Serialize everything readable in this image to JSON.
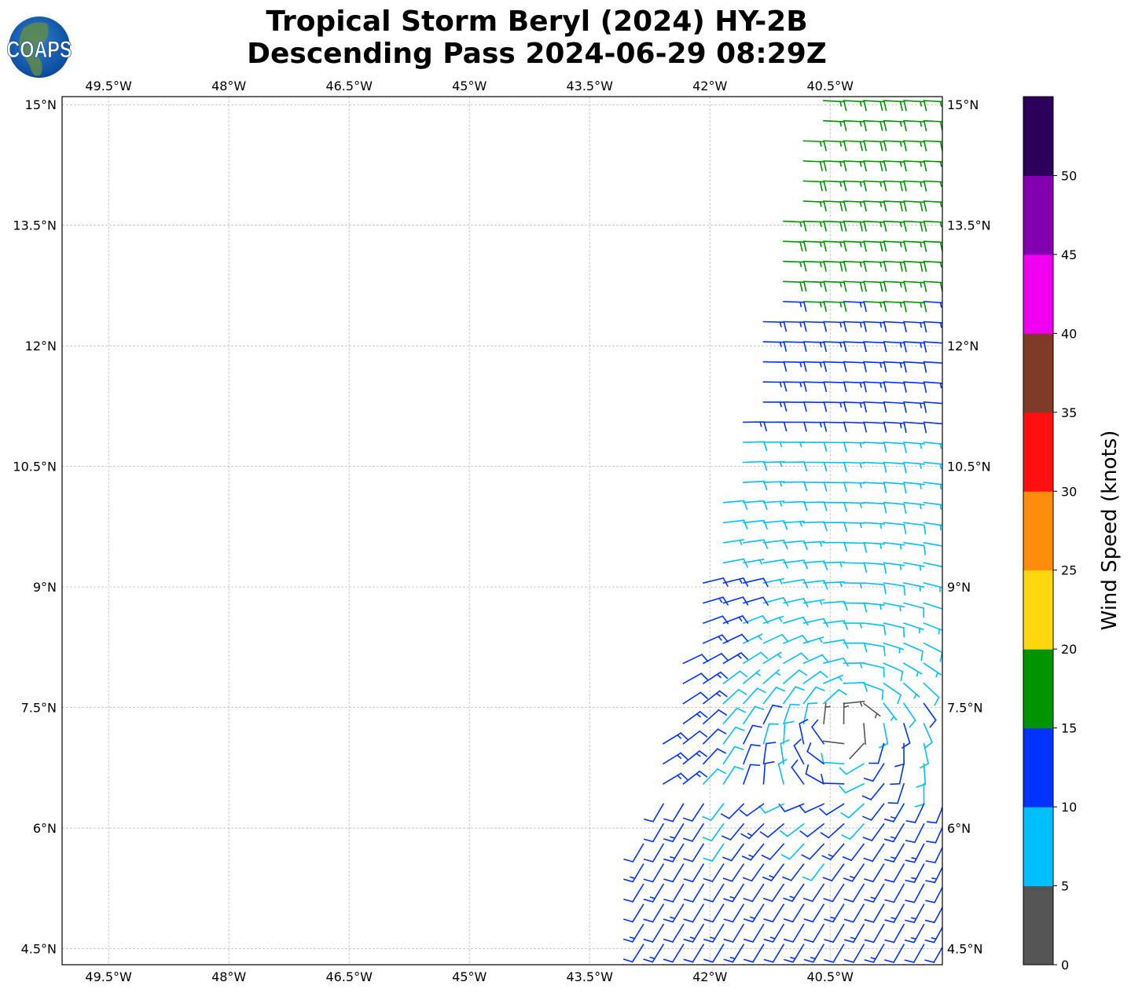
{
  "logo": {
    "text": "COAPS"
  },
  "header": {
    "title_line1": "Tropical Storm Beryl (2024) HY-2B",
    "title_line2": "Descending Pass 2024-06-29 08:29Z"
  },
  "chart_data": {
    "type": "wind-barb-map",
    "title": "Tropical Storm Beryl (2024) HY-2B Descending Pass 2024-06-29 08:29Z",
    "lon_range": [
      -50.08,
      -39.1
    ],
    "lat_range": [
      4.3,
      15.1
    ],
    "grid": true,
    "lon_ticks": [
      -49.5,
      -48,
      -46.5,
      -45,
      -43.5,
      -42,
      -40.5
    ],
    "lon_tick_labels": [
      "49.5°W",
      "48°W",
      "46.5°W",
      "45°W",
      "43.5°W",
      "42°W",
      "40.5°W"
    ],
    "lat_ticks": [
      15,
      13.5,
      12,
      10.5,
      9,
      7.5,
      6,
      4.5
    ],
    "lat_tick_labels": [
      "15°N",
      "13.5°N",
      "12°N",
      "10.5°N",
      "9°N",
      "7.5°N",
      "6°N",
      "4.5°N"
    ],
    "swath_west_edge": [
      [
        -43.11,
        4.3
      ],
      [
        -42.81,
        6.13
      ],
      [
        -42.47,
        7.7
      ],
      [
        -41.98,
        9.46
      ],
      [
        -41.64,
        10.83
      ],
      [
        -41.42,
        11.9
      ],
      [
        -41.3,
        12.54
      ],
      [
        -40.75,
        15.1
      ]
    ],
    "circulation_center": [
      -40.3,
      7.3
    ],
    "speed_profile_by_lat": [
      [
        15.1,
        17
      ],
      [
        12.6,
        17
      ],
      [
        12.4,
        13
      ],
      [
        11.0,
        12
      ],
      [
        10.8,
        8
      ],
      [
        8.0,
        8
      ],
      [
        6.3,
        11
      ],
      [
        4.3,
        12
      ]
    ],
    "barb_spacing_deg": 0.25,
    "colorbar": {
      "label": "Wind Speed (knots)",
      "ticks": [
        "0",
        "5",
        "10",
        "15",
        "20",
        "25",
        "30",
        "35",
        "40",
        "45",
        "50"
      ],
      "bounds": [
        0,
        5,
        10,
        15,
        20,
        25,
        30,
        35,
        40,
        45,
        50,
        55
      ],
      "colors": [
        "#555555",
        "#00bfff",
        "#0033ff",
        "#009400",
        "#ffd70f",
        "#ff8c0a",
        "#ff0f0f",
        "#7f3b28",
        "#f000f0",
        "#8300b0",
        "#2c005a"
      ]
    }
  }
}
